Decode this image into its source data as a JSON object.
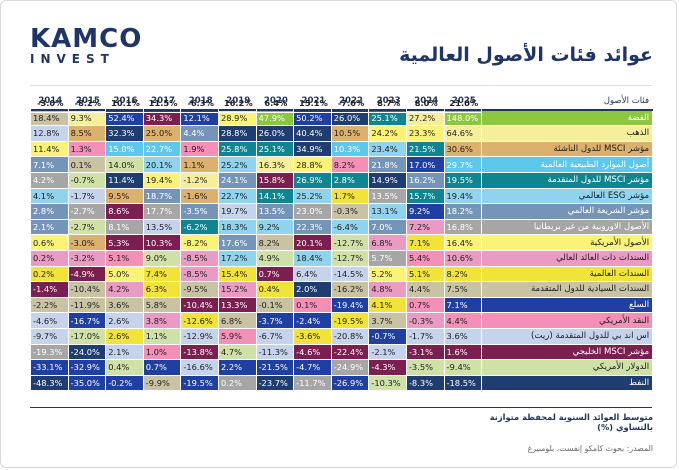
{
  "brand": {
    "name": "KAMCO",
    "sub": "INVEST"
  },
  "title": "عوائد فئات الأصول العالمية",
  "source": "المصدر: بحوث كامكو إنفست، بلومبيرغ",
  "chart_data": {
    "type": "table",
    "title": "عوائد فئات الأصول العالمية",
    "header_label": "فئات الأصول",
    "years": [
      "2014",
      "2015",
      "2016",
      "2017",
      "2018",
      "2019",
      "2020",
      "2021",
      "2022",
      "2023",
      "2024",
      "2025"
    ],
    "assets": [
      {
        "name": "الفضة",
        "color": "#8dc63f"
      },
      {
        "name": "الذهب",
        "color": "#f6ee9a"
      },
      {
        "name": "مؤشر MSCI للدول الناشئة",
        "color": "#dcb06d"
      },
      {
        "name": "أصول الموارد الطبيعية العالمية",
        "color": "#5dc7ec"
      },
      {
        "name": "مؤشر MSCI للدول المتقدمة",
        "color": "#0f8591"
      },
      {
        "name": "مؤشر ESG العالمي",
        "color": "#8fd3ed"
      },
      {
        "name": "مؤشر الشريعة العالمي",
        "color": "#7595b8"
      },
      {
        "name": "الأصول الاوروبية من غير بريطانيا",
        "color": "#a6a6a6"
      },
      {
        "name": "الأصول الأمريكية",
        "color": "#fbf278"
      },
      {
        "name": "السندات ذات العائد العالي",
        "color": "#e99bc3"
      },
      {
        "name": "السندات العالمية",
        "color": "#f1e338"
      },
      {
        "name": "السندات السيادية للدول المتقدمة",
        "color": "#c9c2a3"
      },
      {
        "name": "السلع",
        "color": "#1f3fa2"
      },
      {
        "name": "النقد الأمريكي",
        "color": "#f48fb8"
      },
      {
        "name": "اس اند بي للدول المتقدمة (ريت)",
        "color": "#c5d3ed"
      },
      {
        "name": "مؤشر MSCI الخليجي",
        "color": "#7a1f50"
      },
      {
        "name": "الدولار الأمريكي",
        "color": "#cfe1a6"
      },
      {
        "name": "النفط",
        "color": "#1f3d70"
      }
    ],
    "cells": [
      [
        [
          "18.4%",
          11
        ],
        [
          "9.3%",
          1
        ],
        [
          "52.4%",
          12
        ],
        [
          "34.3%",
          15
        ],
        [
          "12.1%",
          12
        ],
        [
          "28.9%",
          8
        ],
        [
          "47.9%",
          0
        ],
        [
          "50.2%",
          12
        ],
        [
          "26.0%",
          17
        ],
        [
          "25.1%",
          4
        ],
        [
          "27.2%",
          1
        ],
        [
          "148.0%",
          0
        ]
      ],
      [
        [
          "12.8%",
          14
        ],
        [
          "8.5%",
          2
        ],
        [
          "32.3%",
          17
        ],
        [
          "25.0%",
          2
        ],
        [
          "4.4%",
          6
        ],
        [
          "28.8%",
          17
        ],
        [
          "26.0%",
          17
        ],
        [
          "40.4%",
          17
        ],
        [
          "10.5%",
          2
        ],
        [
          "24.2%",
          8
        ],
        [
          "23.3%",
          8
        ],
        [
          "64.6%",
          1
        ]
      ],
      [
        [
          "11.4%",
          8
        ],
        [
          "1.3%",
          13
        ],
        [
          "15.0%",
          3
        ],
        [
          "22.7%",
          3
        ],
        [
          "1.9%",
          13
        ],
        [
          "25.8%",
          4
        ],
        [
          "25.1%",
          4
        ],
        [
          "34.9%",
          17
        ],
        [
          "10.3%",
          3
        ],
        [
          "23.4%",
          5
        ],
        [
          "21.5%",
          4
        ],
        [
          "30.6%",
          2
        ]
      ],
      [
        [
          "7.1%",
          6
        ],
        [
          "0.1%",
          11
        ],
        [
          "14.0%",
          16
        ],
        [
          "20.1%",
          5
        ],
        [
          "1.1%",
          2
        ],
        [
          "25.2%",
          5
        ],
        [
          "16.3%",
          1
        ],
        [
          "28.8%",
          8
        ],
        [
          "8.2%",
          13
        ],
        [
          "21.8%",
          6
        ],
        [
          "17.0%",
          12
        ],
        [
          "29.7%",
          3
        ]
      ],
      [
        [
          "4.2%",
          7
        ],
        [
          "-0.7%",
          16
        ],
        [
          "11.4%",
          17
        ],
        [
          "19.4%",
          8
        ],
        [
          "-1.2%",
          1
        ],
        [
          "24.1%",
          6
        ],
        [
          "15.8%",
          15
        ],
        [
          "26.9%",
          4
        ],
        [
          "2.8%",
          4
        ],
        [
          "14.9%",
          17
        ],
        [
          "16.2%",
          6
        ],
        [
          "19.5%",
          4
        ]
      ],
      [
        [
          "4.1%",
          5
        ],
        [
          "-1.7%",
          14
        ],
        [
          "9.5%",
          2
        ],
        [
          "18.7%",
          6
        ],
        [
          "-1.6%",
          2
        ],
        [
          "22.7%",
          5
        ],
        [
          "14.1%",
          4
        ],
        [
          "25.2%",
          5
        ],
        [
          "1.7%",
          10
        ],
        [
          "13.5%",
          7
        ],
        [
          "15.7%",
          4
        ],
        [
          "19.4%",
          5
        ]
      ],
      [
        [
          "2.8%",
          6
        ],
        [
          "-2.7%",
          7
        ],
        [
          "8.6%",
          15
        ],
        [
          "17.7%",
          7
        ],
        [
          "-3.5%",
          6
        ],
        [
          "19.7%",
          14
        ],
        [
          "13.5%",
          6
        ],
        [
          "23.0%",
          7
        ],
        [
          "-0.3%",
          11
        ],
        [
          "13.1%",
          5
        ],
        [
          "9.2%",
          12
        ],
        [
          "18.2%",
          6
        ]
      ],
      [
        [
          "2.1%",
          6
        ],
        [
          "-2.7%",
          16
        ],
        [
          "8.1%",
          7
        ],
        [
          "13.5%",
          14
        ],
        [
          "-6.2%",
          4
        ],
        [
          "18.3%",
          5
        ],
        [
          "9.2%",
          5
        ],
        [
          "22.3%",
          6
        ],
        [
          "-6.4%",
          5
        ],
        [
          "7.0%",
          6
        ],
        [
          "7.2%",
          9
        ],
        [
          "16.8%",
          7
        ]
      ],
      [
        [
          "0.6%",
          8
        ],
        [
          "-3.0%",
          2
        ],
        [
          "5.3%",
          15
        ],
        [
          "10.3%",
          15
        ],
        [
          "-8.2%",
          8
        ],
        [
          "17.6%",
          6
        ],
        [
          "8.2%",
          11
        ],
        [
          "20.1%",
          15
        ],
        [
          "-12.7%",
          16
        ],
        [
          "6.8%",
          9
        ],
        [
          "7.1%",
          10
        ],
        [
          "16.4%",
          8
        ]
      ],
      [
        [
          "0.2%",
          9
        ],
        [
          "-3.2%",
          9
        ],
        [
          "5.1%",
          13
        ],
        [
          "9.0%",
          16
        ],
        [
          "-8.5%",
          9
        ],
        [
          "17.2%",
          5
        ],
        [
          "4.9%",
          16
        ],
        [
          "18.4%",
          5
        ],
        [
          "-12.7%",
          16
        ],
        [
          "5.7%",
          7
        ],
        [
          "5.4%",
          13
        ],
        [
          "10.6%",
          9
        ]
      ],
      [
        [
          "0.2%",
          10
        ],
        [
          "-4.9%",
          15
        ],
        [
          "5.0%",
          8
        ],
        [
          "7.4%",
          10
        ],
        [
          "-8.5%",
          9
        ],
        [
          "15.4%",
          10
        ],
        [
          "0.7%",
          15
        ],
        [
          "6.4%",
          14
        ],
        [
          "-14.5%",
          14
        ],
        [
          "5.2%",
          8
        ],
        [
          "5.1%",
          10
        ],
        [
          "8.2%",
          10
        ]
      ],
      [
        [
          "-1.4%",
          15
        ],
        [
          "-10.4%",
          11
        ],
        [
          "4.2%",
          9
        ],
        [
          "6.3%",
          10
        ],
        [
          "-9.5%",
          11
        ],
        [
          "15.2%",
          9
        ],
        [
          "0.4%",
          10
        ],
        [
          "2.0%",
          17
        ],
        [
          "-16.2%",
          11
        ],
        [
          "4.8%",
          9
        ],
        [
          "4.4%",
          11
        ],
        [
          "7.5%",
          11
        ]
      ],
      [
        [
          "-2.2%",
          11
        ],
        [
          "-11.9%",
          11
        ],
        [
          "3.6%",
          11
        ],
        [
          "5.8%",
          11
        ],
        [
          "-10.4%",
          15
        ],
        [
          "13.3%",
          15
        ],
        [
          "-0.1%",
          11
        ],
        [
          "0.1%",
          13
        ],
        [
          "-19.4%",
          12
        ],
        [
          "4.1%",
          10
        ],
        [
          "0.7%",
          13
        ],
        [
          "7.1%",
          12
        ]
      ],
      [
        [
          "-4.6%",
          14
        ],
        [
          "-16.7%",
          12
        ],
        [
          "2.6%",
          14
        ],
        [
          "3.8%",
          9
        ],
        [
          "-12.6%",
          10
        ],
        [
          "6.8%",
          11
        ],
        [
          "-3.7%",
          12
        ],
        [
          "-2.4%",
          12
        ],
        [
          "-19.5%",
          10
        ],
        [
          "3.7%",
          11
        ],
        [
          "-0.3%",
          9
        ],
        [
          "4.4%",
          13
        ]
      ],
      [
        [
          "-9.7%",
          14
        ],
        [
          "-17.0%",
          16
        ],
        [
          "2.6%",
          10
        ],
        [
          "1.1%",
          16
        ],
        [
          "-12.9%",
          14
        ],
        [
          "5.9%",
          13
        ],
        [
          "-6.7%",
          14
        ],
        [
          "-3.6%",
          10
        ],
        [
          "-20.8%",
          14
        ],
        [
          "-0.7%",
          12
        ],
        [
          "-1.7%",
          14
        ],
        [
          "3.6%",
          14
        ]
      ],
      [
        [
          "-19.3%",
          7
        ],
        [
          "-24.0%",
          17
        ],
        [
          "2.1%",
          14
        ],
        [
          "1.0%",
          13
        ],
        [
          "-13.8%",
          15
        ],
        [
          "4.7%",
          16
        ],
        [
          "-11.3%",
          14
        ],
        [
          "-4.6%",
          15
        ],
        [
          "-22.4%",
          15
        ],
        [
          "-2.1%",
          14
        ],
        [
          "-3.1%",
          15
        ],
        [
          "1.6%",
          15
        ]
      ],
      [
        [
          "-33.1%",
          12
        ],
        [
          "-32.9%",
          12
        ],
        [
          "0.4%",
          16
        ],
        [
          "0.7%",
          12
        ],
        [
          "-16.6%",
          14
        ],
        [
          "2.2%",
          12
        ],
        [
          "-21.5%",
          12
        ],
        [
          "-4.7%",
          12
        ],
        [
          "-24.9%",
          7
        ],
        [
          "-4.3%",
          15
        ],
        [
          "-3.5%",
          16
        ],
        [
          "-9.4%",
          16
        ]
      ],
      [
        [
          "-48.3%",
          17
        ],
        [
          "-35.0%",
          12
        ],
        [
          "-0.2%",
          12
        ],
        [
          "-9.9%",
          11
        ],
        [
          "-19.5%",
          12
        ],
        [
          "0.2%",
          7
        ],
        [
          "-23.7%",
          17
        ],
        [
          "-11.7%",
          7
        ],
        [
          "-26.9%",
          12
        ],
        [
          "-10.3%",
          16
        ],
        [
          "-8.3%",
          17
        ],
        [
          "-18.5%",
          17
        ]
      ]
    ],
    "average_label": "متوسط العوائد السنوية لمحفظة متوازنة بالتساوي (%)",
    "averages": [
      "-3.0%",
      "-8.2%",
      "10.1%",
      "11.5%",
      "-6.3%",
      "16.2%",
      "6.4%",
      "15.1%",
      "-7.6%",
      "8.7%",
      "8.0%",
      "21.0%"
    ]
  }
}
